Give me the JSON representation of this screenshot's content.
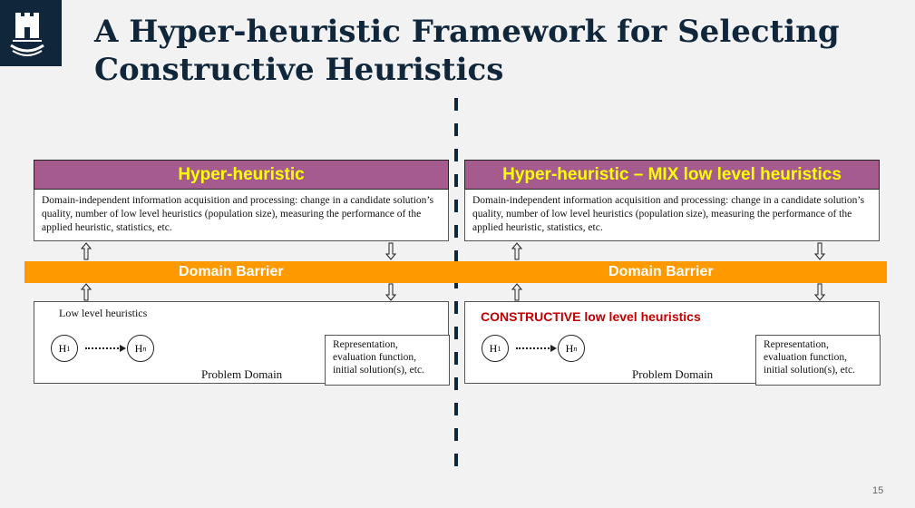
{
  "slide": {
    "title": "A Hyper-heuristic Framework for Selecting Constructive Heuristics",
    "page_number": "15"
  },
  "logo": {
    "icon": "university-castle-icon"
  },
  "barrier": {
    "left_label": "Domain Barrier",
    "right_label": "Domain Barrier",
    "color": "#ff9900"
  },
  "left_panel": {
    "header": "Hyper-heuristic",
    "description": "Domain-independent information acquisition and processing: change in a candidate solution’s quality, number of low level heuristics (population size), measuring the performance of the applied heuristic, statistics, etc.",
    "llh_label": "Low level heuristics",
    "h1": "H",
    "h1_sub": "1",
    "hn": "H",
    "hn_sub": "n",
    "problem_domain": "Problem Domain",
    "representation": "Representation, evaluation function, initial solution(s), etc."
  },
  "right_panel": {
    "header": "Hyper-heuristic – MIX low level heuristics",
    "description": "Domain-independent information acquisition and processing: change in a candidate solution’s quality, number of low level heuristics (population size), measuring the performance of the applied heuristic, statistics, etc.",
    "llh_label": "CONSTRUCTIVE low level heuristics",
    "h1": "H",
    "h1_sub": "1",
    "hn": "H",
    "hn_sub": "n",
    "problem_domain": "Problem Domain",
    "representation": "Representation, evaluation function, initial solution(s), etc."
  },
  "colors": {
    "header_bg": "#a65b8e",
    "header_text": "#ffff00",
    "navy": "#10263b",
    "red_label": "#c00000"
  }
}
